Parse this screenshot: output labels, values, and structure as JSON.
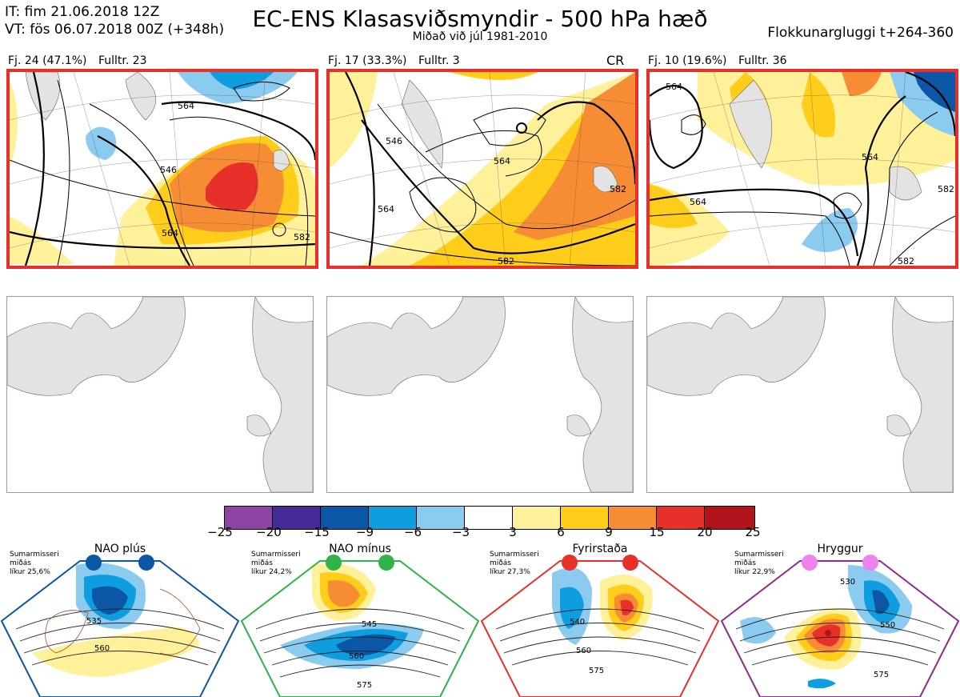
{
  "header": {
    "it": "IT: fim 21.06.2018 12Z",
    "vt": "VT: fös 06.07.2018 00Z  (+348h)",
    "title": "EC-ENS Klasasviðsmyndir - 500 hPa hæð",
    "subtitle": "Miðað við júl 1981-2010",
    "window": "Flokkunargluggi t+264-360"
  },
  "panels": [
    {
      "fj": "Fj. 24 (47.1%)",
      "fulltr": "Fulltr. 23",
      "cr": "",
      "contours": [
        "546",
        "564",
        "582",
        "564"
      ]
    },
    {
      "fj": "Fj. 17 (33.3%)",
      "fulltr": "Fulltr. 3",
      "cr": "CR",
      "contours": [
        "546",
        "564",
        "582",
        "564",
        "582"
      ]
    },
    {
      "fj": "Fj. 10 (19.6%)",
      "fulltr": "Fulltr. 36",
      "cr": "",
      "contours": [
        "564",
        "564",
        "564",
        "582",
        "582"
      ]
    }
  ],
  "colorbar": {
    "colors": [
      "#8e44a5",
      "#442b96",
      "#0c56a6",
      "#0e9ddf",
      "#8bcbef",
      "#ffffff",
      "#fff19a",
      "#ffcd1a",
      "#f68c33",
      "#e8302a",
      "#b3141b"
    ],
    "ticks": [
      "−25",
      "−20",
      "−15",
      "−9",
      "−6",
      "−3",
      "3",
      "6",
      "9",
      "15",
      "20",
      "25"
    ]
  },
  "regimes": [
    {
      "title": "NAO plús",
      "season": "Sumarmisseri",
      "mean": "miðás",
      "prob": "líkur 25,6%",
      "dot_color": "#0c56a6",
      "frame_color": "#0c56a6",
      "contours": [
        "535",
        "560"
      ]
    },
    {
      "title": "NAO mínus",
      "season": "Sumarmisseri",
      "mean": "miðás",
      "prob": "líkur 24,2%",
      "dot_color": "#2fb34a",
      "frame_color": "#2fb34a",
      "contours": [
        "545",
        "560",
        "575"
      ]
    },
    {
      "title": "Fyrirstaða",
      "season": "Sumarmisseri",
      "mean": "miðás",
      "prob": "líkur 27,3%",
      "dot_color": "#e8302a",
      "frame_color": "#e8302a",
      "contours": [
        "540",
        "560",
        "575"
      ]
    },
    {
      "title": "Hryggur",
      "season": "Sumarmisseri",
      "mean": "miðás",
      "prob": "líkur 22,9%",
      "dot_color": "#ee82ee",
      "frame_color": "#8e2c8e",
      "contours": [
        "530",
        "550",
        "575"
      ]
    }
  ]
}
